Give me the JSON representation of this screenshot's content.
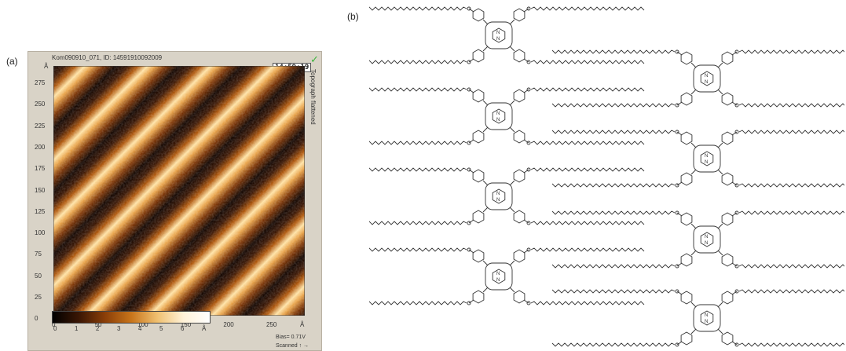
{
  "panels": {
    "a_label": "(a)",
    "b_label": "(b)"
  },
  "stm": {
    "title": "Kom090910_071, ID: 14591910092009",
    "time": "14:59:19",
    "side_label": "Topograph flattened",
    "y_unit": "Å",
    "x_unit": "Å",
    "y_ticks": [
      "275",
      "250",
      "225",
      "200",
      "175",
      "150",
      "125",
      "100",
      "75",
      "50",
      "25",
      "0"
    ],
    "x_ticks": [
      "0",
      "50",
      "100",
      "150",
      "200",
      "250"
    ],
    "colorbar_ticks": [
      "0",
      "1",
      "2",
      "3",
      "4",
      "5",
      "6"
    ],
    "colorbar_unit": "Å",
    "bias": "Bias= 0.71V",
    "scanned": "Scanned ↑ →",
    "colors": {
      "dark": "#1a0a02",
      "mid": "#b8620f",
      "light": "#ffe8b0"
    }
  },
  "schematic": {
    "columns": 2,
    "molecules_per_column": 4,
    "porphyrin_label": "N"
  }
}
